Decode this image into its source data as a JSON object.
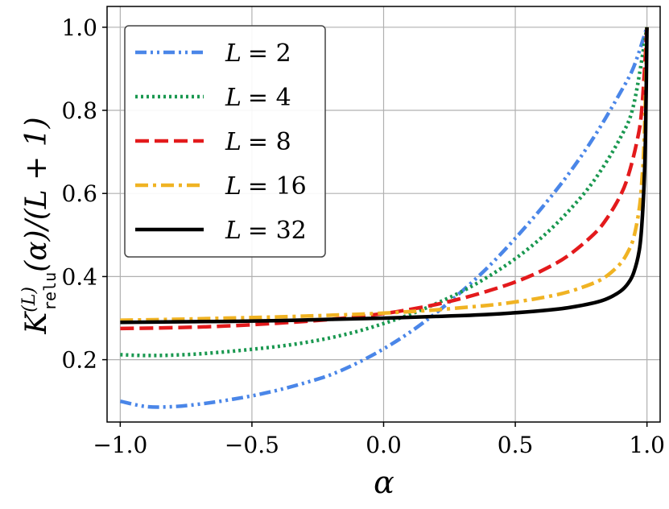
{
  "chart_data": {
    "type": "line",
    "xlabel": "α",
    "ylabel": {
      "main": "K",
      "superscript": "(L)",
      "subscript": "relu",
      "rest": "(α)/(L + 1)"
    },
    "xlim": [
      -1.05,
      1.05
    ],
    "ylim": [
      0.05,
      1.05
    ],
    "xticks": [
      -1.0,
      -0.5,
      0.0,
      0.5,
      1.0
    ],
    "xtick_labels": [
      "−1.0",
      "−0.5",
      "0.0",
      "0.5",
      "1.0"
    ],
    "yticks": [
      0.2,
      0.4,
      0.6,
      0.8,
      1.0
    ],
    "ytick_labels": [
      "0.2",
      "0.4",
      "0.6",
      "0.8",
      "1.0"
    ],
    "grid": true,
    "legend_position": "top-left",
    "series": [
      {
        "name": "L = 2",
        "L_text": "L",
        "value_text": "= 2",
        "color": "#4a86e8",
        "dash": "dashdotdot",
        "x": [
          -1.0,
          -0.9,
          -0.8,
          -0.7,
          -0.6,
          -0.5,
          -0.4,
          -0.3,
          -0.2,
          -0.1,
          0.0,
          0.1,
          0.2,
          0.3,
          0.4,
          0.5,
          0.6,
          0.7,
          0.8,
          0.9,
          0.95,
          1.0
        ],
        "y": [
          0.1,
          0.087,
          0.087,
          0.093,
          0.102,
          0.113,
          0.127,
          0.144,
          0.164,
          0.192,
          0.226,
          0.266,
          0.313,
          0.366,
          0.425,
          0.492,
          0.565,
          0.645,
          0.737,
          0.844,
          0.905,
          1.0
        ]
      },
      {
        "name": "L = 4",
        "L_text": "L",
        "value_text": "= 4",
        "color": "#1a9850",
        "dash": "dotted",
        "x": [
          -1.0,
          -0.9,
          -0.8,
          -0.7,
          -0.6,
          -0.5,
          -0.4,
          -0.3,
          -0.2,
          -0.1,
          0.0,
          0.1,
          0.2,
          0.3,
          0.4,
          0.5,
          0.6,
          0.7,
          0.8,
          0.9,
          0.95,
          1.0
        ],
        "y": [
          0.212,
          0.21,
          0.211,
          0.214,
          0.219,
          0.225,
          0.232,
          0.241,
          0.253,
          0.268,
          0.287,
          0.309,
          0.335,
          0.365,
          0.401,
          0.443,
          0.494,
          0.556,
          0.632,
          0.735,
          0.815,
          1.0
        ]
      },
      {
        "name": "L = 8",
        "L_text": "L",
        "value_text": "= 8",
        "color": "#e31a1c",
        "dash": "dashed",
        "x": [
          -1.0,
          -0.8,
          -0.6,
          -0.4,
          -0.2,
          0.0,
          0.1,
          0.2,
          0.3,
          0.4,
          0.5,
          0.6,
          0.7,
          0.8,
          0.85,
          0.9,
          0.93,
          0.96,
          0.98,
          1.0
        ],
        "y": [
          0.275,
          0.277,
          0.281,
          0.288,
          0.297,
          0.311,
          0.321,
          0.333,
          0.348,
          0.366,
          0.387,
          0.414,
          0.45,
          0.503,
          0.542,
          0.596,
          0.645,
          0.72,
          0.8,
          1.0
        ]
      },
      {
        "name": "L = 16",
        "L_text": "L",
        "value_text": "= 16",
        "color": "#f0b323",
        "dash": "dashdot",
        "x": [
          -1.0,
          -0.8,
          -0.6,
          -0.4,
          -0.2,
          0.0,
          0.2,
          0.4,
          0.5,
          0.6,
          0.7,
          0.8,
          0.85,
          0.9,
          0.93,
          0.95,
          0.97,
          0.98,
          0.99,
          1.0
        ],
        "y": [
          0.295,
          0.297,
          0.3,
          0.303,
          0.307,
          0.312,
          0.32,
          0.331,
          0.339,
          0.349,
          0.363,
          0.385,
          0.403,
          0.432,
          0.462,
          0.495,
          0.56,
          0.625,
          0.74,
          1.0
        ]
      },
      {
        "name": "L = 32",
        "L_text": "L",
        "value_text": "= 32",
        "color": "#000000",
        "dash": "solid",
        "x": [
          -1.0,
          -0.8,
          -0.6,
          -0.4,
          -0.2,
          0.0,
          0.2,
          0.4,
          0.6,
          0.7,
          0.8,
          0.85,
          0.9,
          0.93,
          0.95,
          0.97,
          0.98,
          0.99,
          0.995,
          1.0
        ],
        "y": [
          0.29,
          0.291,
          0.292,
          0.294,
          0.297,
          0.3,
          0.304,
          0.309,
          0.318,
          0.325,
          0.337,
          0.347,
          0.365,
          0.385,
          0.41,
          0.46,
          0.52,
          0.64,
          0.76,
          1.0
        ]
      }
    ]
  }
}
